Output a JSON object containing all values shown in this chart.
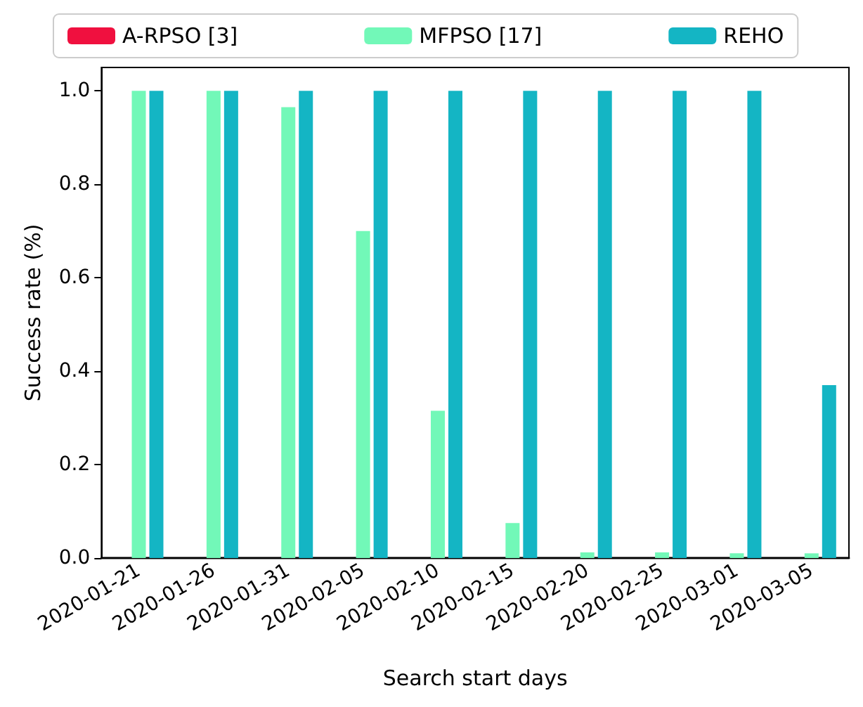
{
  "chart_data": {
    "type": "bar",
    "xlabel": "Search start days",
    "ylabel": "Success rate (%)",
    "categories": [
      "2020-01-21",
      "2020-01-26",
      "2020-01-31",
      "2020-02-05",
      "2020-02-10",
      "2020-02-15",
      "2020-02-20",
      "2020-02-25",
      "2020-03-01",
      "2020-03-05"
    ],
    "series": [
      {
        "name": "A-RPSO [3]",
        "color": "#f0103f",
        "values": [
          0,
          0,
          0,
          0,
          0,
          0,
          0,
          0,
          0,
          0
        ]
      },
      {
        "name": "MFPSO [17]",
        "color": "#72f8b8",
        "values": [
          1,
          1,
          0.965,
          0.7,
          0.315,
          0.075,
          0.012,
          0.012,
          0.01,
          0.01
        ]
      },
      {
        "name": "REHO",
        "color": "#14b5c4",
        "values": [
          1,
          1,
          1,
          1,
          1,
          1,
          1,
          1,
          1,
          0.37
        ]
      }
    ],
    "ylim": [
      0,
      1.05
    ],
    "yticks": [
      {
        "value": 0,
        "label": "0.0"
      },
      {
        "value": 0.2,
        "label": "0.2"
      },
      {
        "value": 0.4,
        "label": "0.4"
      },
      {
        "value": 0.6,
        "label": "0.6"
      },
      {
        "value": 0.8,
        "label": "0.8"
      },
      {
        "value": 1,
        "label": "1.0"
      }
    ],
    "legend": "top",
    "grid": false
  }
}
